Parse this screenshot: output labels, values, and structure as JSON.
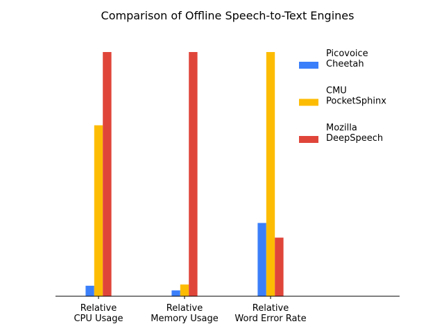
{
  "chart_data": {
    "type": "bar",
    "title": "Comparison of Offline Speech-to-Text Engines",
    "xlabel": "",
    "ylabel": "",
    "categories": [
      [
        "Relative",
        "CPU Usage"
      ],
      [
        "Relative",
        "Memory Usage"
      ],
      [
        "Relative",
        "Word Error Rate"
      ]
    ],
    "xlim": [
      -0.5,
      3.5
    ],
    "ylim": [
      0,
      1.0
    ],
    "grid": false,
    "legend_position": "top-right",
    "series": [
      {
        "name": [
          "Picovoice",
          "Cheetah"
        ],
        "color": "#3b7ffa",
        "values": [
          0.043,
          0.024,
          0.3
        ]
      },
      {
        "name": [
          "CMU",
          "PocketSphinx"
        ],
        "color": "#fdbc04",
        "values": [
          0.7,
          0.048,
          1.0
        ]
      },
      {
        "name": [
          "Mozilla",
          "DeepSpeech"
        ],
        "color": "#e0453a",
        "values": [
          1.0,
          1.0,
          0.24
        ]
      }
    ]
  }
}
